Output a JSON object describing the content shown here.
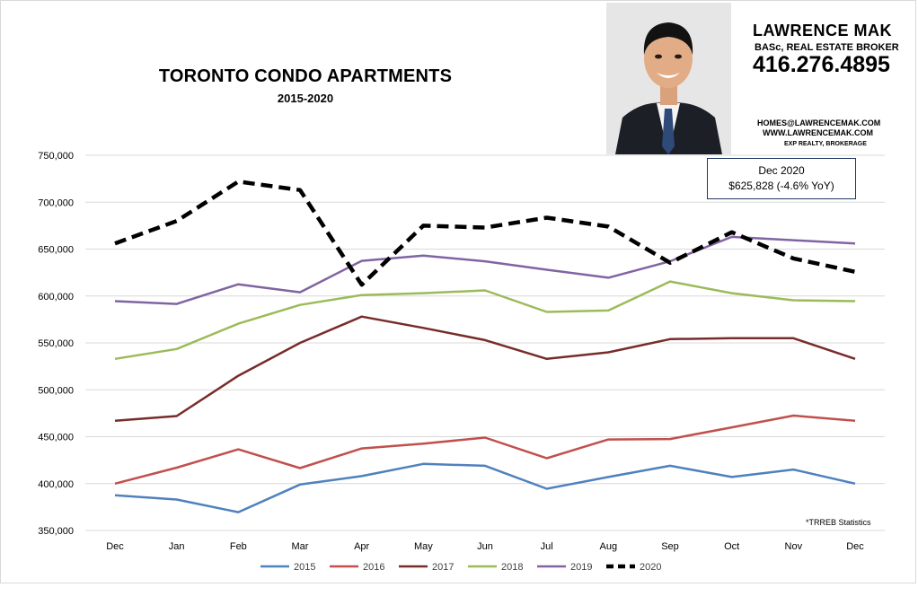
{
  "header": {
    "title": "TORONTO CONDO APARTMENTS",
    "subtitle": "2015-2020"
  },
  "agent": {
    "name": "LAWRENCE MAK",
    "role": "BASc, REAL ESTATE BROKER",
    "phone": "416.276.4895",
    "email": "HOMES@LAWRENCEMAK.COM",
    "website": "WWW.LAWRENCEMAK.COM",
    "brokerage": "EXP REALTY, BROKERAGE"
  },
  "callout": {
    "line1": "Dec 2020",
    "line2": "$625,828  (-4.6% YoY)"
  },
  "source_note": "*TRREB Statistics",
  "chart_data": {
    "type": "line",
    "title": "TORONTO CONDO APARTMENTS",
    "subtitle": "2015-2020",
    "xlabel": "",
    "ylabel": "",
    "categories": [
      "Dec",
      "Jan",
      "Feb",
      "Mar",
      "Apr",
      "May",
      "Jun",
      "Jul",
      "Aug",
      "Sep",
      "Oct",
      "Nov",
      "Dec"
    ],
    "ylim": [
      350000,
      750000
    ],
    "yticks": [
      350000,
      400000,
      450000,
      500000,
      550000,
      600000,
      650000,
      700000,
      750000
    ],
    "ytick_labels": [
      "350,000",
      "400,000",
      "450,000",
      "500,000",
      "550,000",
      "600,000",
      "650,000",
      "700,000",
      "750,000"
    ],
    "grid": true,
    "legend_position": "bottom",
    "series": [
      {
        "name": "2015",
        "color": "#4f81bd",
        "dashed": false,
        "values": [
          387500,
          383000,
          369500,
          399000,
          408000,
          421000,
          419000,
          394500,
          407000,
          419000,
          407000,
          415000,
          400000
        ]
      },
      {
        "name": "2016",
        "color": "#c0504d",
        "dashed": false,
        "values": [
          400000,
          417000,
          436500,
          416500,
          437500,
          442500,
          449000,
          427000,
          447000,
          447500,
          460000,
          472500,
          467000
        ]
      },
      {
        "name": "2017",
        "color": "#772c2a",
        "dashed": false,
        "values": [
          467000,
          472000,
          515000,
          550000,
          578000,
          566000,
          553000,
          533000,
          540000,
          554000,
          555000,
          555000,
          533000
        ]
      },
      {
        "name": "2018",
        "color": "#9bbb59",
        "dashed": false,
        "values": [
          533000,
          543500,
          570500,
          590500,
          601000,
          603000,
          606000,
          583000,
          584500,
          615500,
          603000,
          595500,
          594500
        ]
      },
      {
        "name": "2019",
        "color": "#8064a2",
        "dashed": false,
        "values": [
          594500,
          591500,
          612500,
          604000,
          637500,
          643000,
          637000,
          628000,
          619500,
          637000,
          663000,
          659500,
          656000
        ]
      },
      {
        "name": "2020",
        "color": "#000000",
        "dashed": true,
        "values": [
          656000,
          680000,
          722000,
          713000,
          612000,
          675000,
          673000,
          683500,
          674000,
          635500,
          668000,
          640000,
          625828
        ]
      }
    ]
  }
}
